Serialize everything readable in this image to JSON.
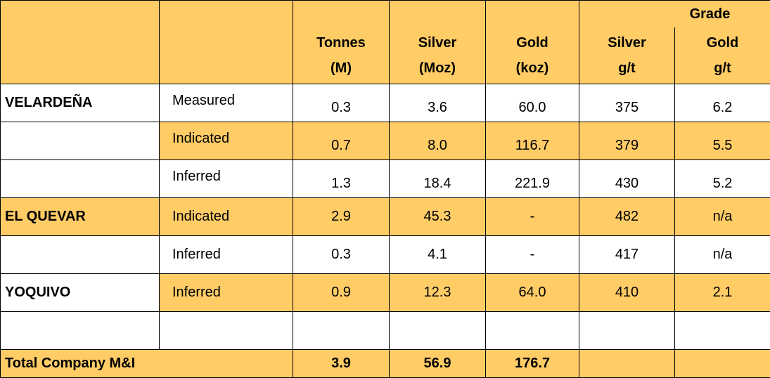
{
  "header": {
    "grade_label": "Grade",
    "columns": [
      {
        "line1": "Tonnes",
        "line2": "(M)"
      },
      {
        "line1": "Silver",
        "line2": "(Moz)"
      },
      {
        "line1": "Gold",
        "line2": "(koz)"
      },
      {
        "line1": "Silver",
        "line2": "g/t"
      },
      {
        "line1": "Gold",
        "line2": "g/t"
      }
    ]
  },
  "rows": [
    {
      "site": "VELARDEÑA",
      "category": "Measured",
      "tonnes": "0.3",
      "silver_moz": "3.6",
      "gold_koz": "60.0",
      "silver_gt": "375",
      "gold_gt": "6.2"
    },
    {
      "site": "",
      "category": "Indicated",
      "tonnes": "0.7",
      "silver_moz": "8.0",
      "gold_koz": "116.7",
      "silver_gt": "379",
      "gold_gt": "5.5"
    },
    {
      "site": "",
      "category": "Inferred",
      "tonnes": "1.3",
      "silver_moz": "18.4",
      "gold_koz": "221.9",
      "silver_gt": "430",
      "gold_gt": "5.2"
    },
    {
      "site": "EL QUEVAR",
      "category": "Indicated",
      "tonnes": "2.9",
      "silver_moz": "45.3",
      "gold_koz": "-",
      "silver_gt": "482",
      "gold_gt": "n/a"
    },
    {
      "site": "",
      "category": "Inferred",
      "tonnes": "0.3",
      "silver_moz": "4.1",
      "gold_koz": "-",
      "silver_gt": "417",
      "gold_gt": "n/a"
    },
    {
      "site": "YOQUIVO",
      "category": "Inferred",
      "tonnes": "0.9",
      "silver_moz": "12.3",
      "gold_koz": "64.0",
      "silver_gt": "410",
      "gold_gt": "2.1"
    }
  ],
  "total": {
    "label": "Total Company M&I",
    "tonnes": "3.9",
    "silver_moz": "56.9",
    "gold_koz": "176.7",
    "silver_gt": "",
    "gold_gt": ""
  },
  "colors": {
    "highlight": "#FFCC66",
    "plain": "#FFFFFF",
    "border": "#000000"
  }
}
